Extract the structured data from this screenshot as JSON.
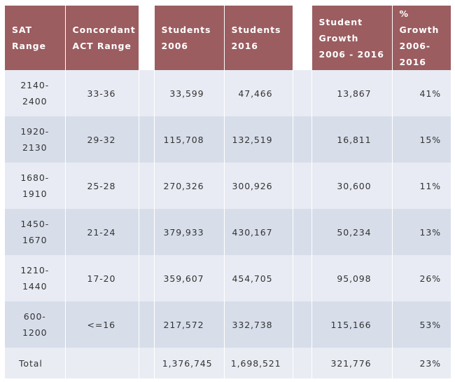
{
  "headers": {
    "sat": [
      "SAT",
      "Range"
    ],
    "act": [
      "Concordant",
      "ACT Range"
    ],
    "s2006": [
      "Students",
      "2006"
    ],
    "s2016": [
      "Students",
      "2016"
    ],
    "growth": [
      "Student",
      "Growth",
      "2006 - 2016"
    ],
    "pct": [
      "% Growth",
      "2006-",
      "2016"
    ]
  },
  "rows": [
    {
      "sat": [
        "2140-",
        "2400"
      ],
      "act": "33-36",
      "s2006": "33,599",
      "s2016": "47,466",
      "growth": "13,867",
      "pct": "41%"
    },
    {
      "sat": [
        "1920-",
        "2130"
      ],
      "act": "29-32",
      "s2006": "115,708",
      "s2016": "132,519",
      "growth": "16,811",
      "pct": "15%"
    },
    {
      "sat": [
        "1680-",
        "1910"
      ],
      "act": "25-28",
      "s2006": "270,326",
      "s2016": "300,926",
      "growth": "30,600",
      "pct": "11%"
    },
    {
      "sat": [
        "1450-",
        "1670"
      ],
      "act": "21-24",
      "s2006": "379,933",
      "s2016": "430,167",
      "growth": "50,234",
      "pct": "13%"
    },
    {
      "sat": [
        "1210-",
        "1440"
      ],
      "act": "17-20",
      "s2006": "359,607",
      "s2016": "454,705",
      "growth": "95,098",
      "pct": "26%"
    },
    {
      "sat": [
        "600-",
        "1200"
      ],
      "act": "<=16",
      "s2006": "217,572",
      "s2016": "332,738",
      "growth": "115,166",
      "pct": "53%"
    }
  ],
  "total": {
    "label": "Total",
    "act": "",
    "s2006": "1,376,745",
    "s2016": "1,698,521",
    "growth": "321,776",
    "pct": "23%"
  },
  "colors": {
    "header": "#9b5d60",
    "row_light": "#e8ebf3",
    "row_dark": "#d7deea"
  }
}
